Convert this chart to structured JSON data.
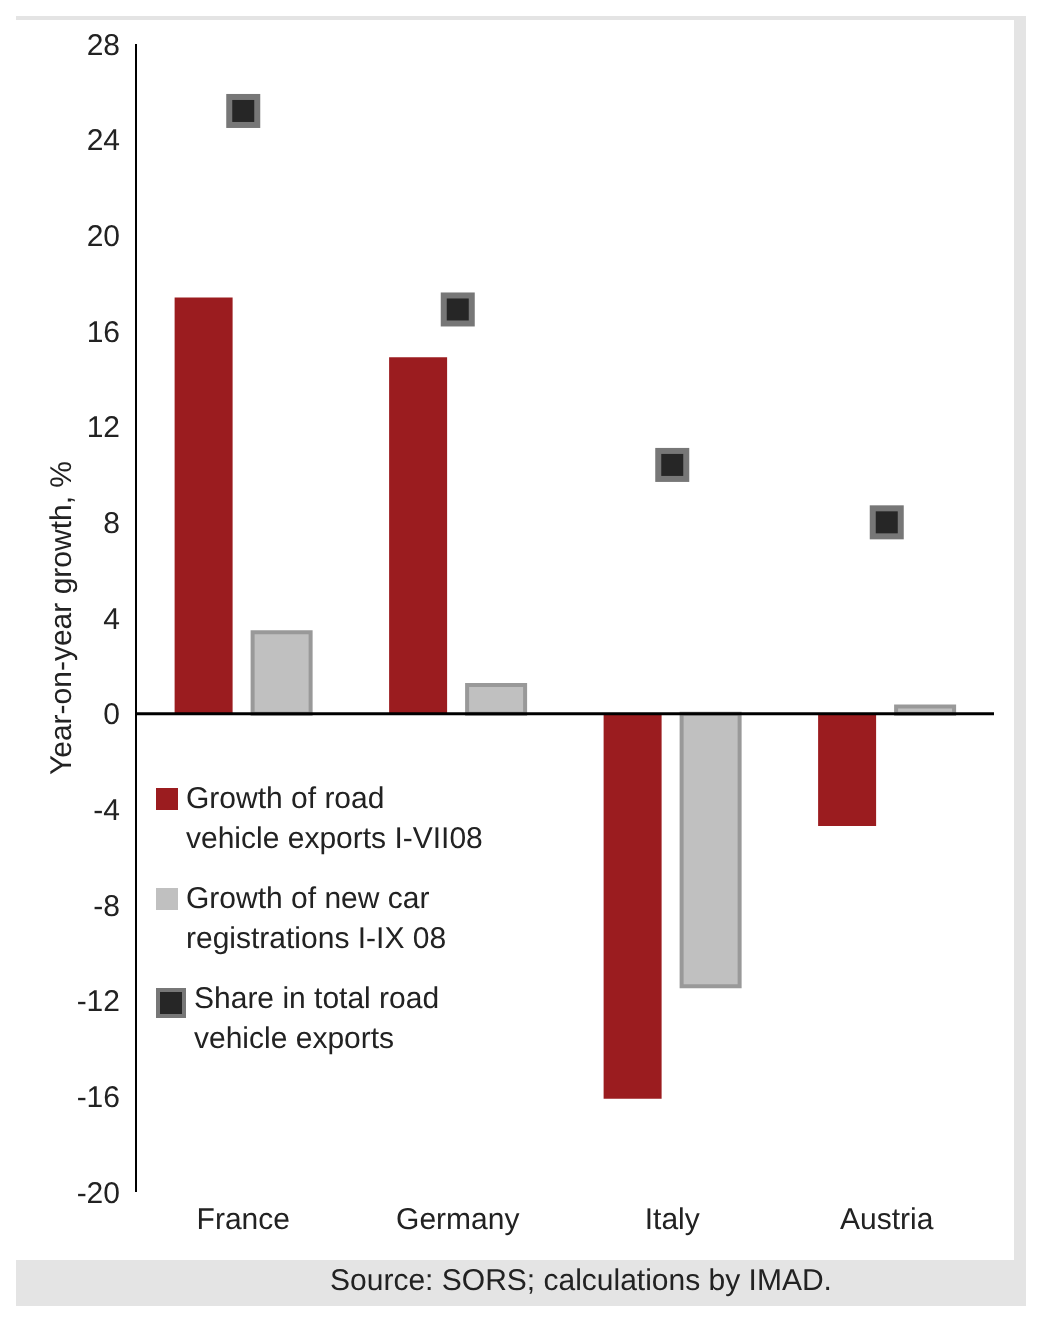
{
  "chart_data": {
    "type": "bar",
    "ylabel": "Year-on-year growth, %",
    "categories": [
      "France",
      "Germany",
      "Italy",
      "Austria"
    ],
    "series": [
      {
        "name": "Growth of road vehicle exports I-VII08",
        "color": "#9b1c1f",
        "values": [
          17.4,
          14.9,
          -16.1,
          -4.7
        ]
      },
      {
        "name": "Growth of new car registrations I-IX 08",
        "color": "#c0c0c0",
        "values": [
          3.4,
          1.2,
          -11.4,
          0.3
        ]
      },
      {
        "name": "Share in total road vehicle exports",
        "type": "scatter",
        "color": "#262626",
        "values": [
          25.2,
          16.9,
          10.4,
          8.0
        ]
      }
    ],
    "ylim": [
      -20,
      28
    ],
    "yticks": [
      -20,
      -16,
      -12,
      -8,
      -4,
      0,
      4,
      8,
      12,
      16,
      20,
      24,
      28
    ],
    "grid": false,
    "ref_lines": [
      {
        "axis": "y",
        "value": 0,
        "color": "#000000"
      }
    ],
    "legend": "left",
    "marker": "square",
    "annotations": [
      "Source: SORS; calculations by IMAD."
    ]
  }
}
